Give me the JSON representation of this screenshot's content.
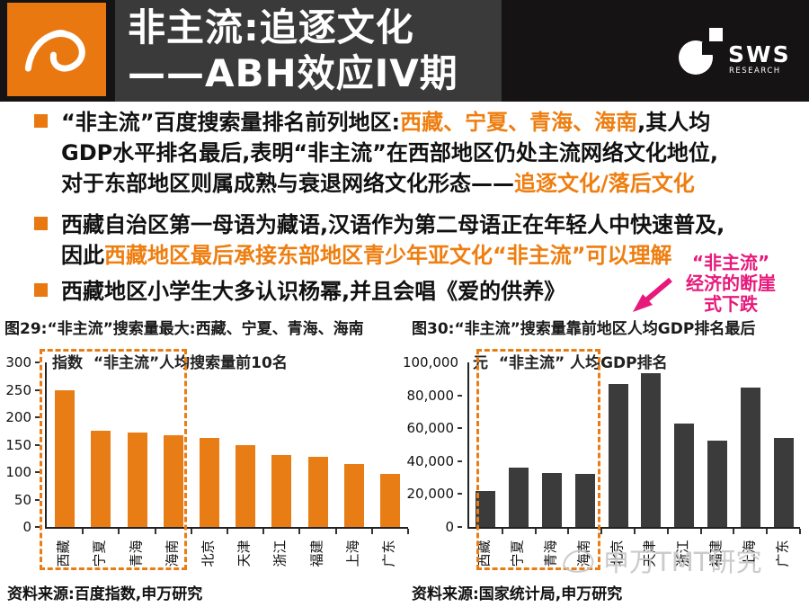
{
  "header": {
    "title_line1": "非主流:追逐文化",
    "title_line2": "——ABH效应IV期",
    "brand": "SWS",
    "brand_sub": "RESEARCH"
  },
  "colors": {
    "orange": "#E87D15",
    "orange_text": "#EE7E10",
    "pink": "#E7197B",
    "dark_bar": "#3B3B3B",
    "header_bg": "#151313",
    "title_block_bg": "#3B3A3A"
  },
  "bullets": [
    {
      "segments": [
        {
          "text": "“非主流”百度搜索量排名前列地区:",
          "color": "dark"
        },
        {
          "text": "西藏、宁夏、青海、海南",
          "color": "orange"
        },
        {
          "text": ",其人均\nGDP水平排名最后,表明“非主流”在西部地区仍处主流网络文化地位,\n对于东部地区则属成熟与衰退网络文化形态——",
          "color": "dark"
        },
        {
          "text": "追逐文化/落后文化",
          "color": "orange"
        }
      ]
    },
    {
      "segments": [
        {
          "text": "西藏自治区第一母语为藏语,汉语作为第二母语正在年轻人中快速普及,\n因此",
          "color": "dark"
        },
        {
          "text": "西藏地区最后承接东部地区青少年亚文化“非主流”可以理解",
          "color": "orange"
        }
      ]
    },
    {
      "segments": [
        {
          "text": "西藏地区小学生大多认识杨幂,并且会唱《爱的供养》",
          "color": "dark"
        }
      ]
    }
  ],
  "annotation": {
    "text": "“非主流”\n经济的断崖\n式下跌"
  },
  "figures": [
    {
      "caption": "图29:“非主流”搜索量最大:西藏、宁夏、青海、海南",
      "source": "资料来源:百度指数,申万研究"
    },
    {
      "caption": "图30:“非主流”搜索量靠前地区人均GDP排名最后",
      "source": "资料来源:国家统计局,申万研究"
    }
  ],
  "watermark": {
    "text": "申万TMT研究"
  },
  "chart_data": [
    {
      "type": "bar",
      "title": "“非主流”人均搜索量前10名",
      "ylabel": "指数",
      "categories": [
        "西藏",
        "宁夏",
        "青海",
        "海南",
        "北京",
        "天津",
        "浙江",
        "福建",
        "上海",
        "广东"
      ],
      "values": [
        250,
        175,
        172,
        167,
        162,
        150,
        131,
        128,
        115,
        96
      ],
      "ylim": [
        0,
        300
      ],
      "yticks": [
        "300",
        "250",
        "200",
        "150",
        "100",
        "50",
        "0"
      ],
      "bar_color": "#E87D15",
      "grid": false,
      "legend_position": "none",
      "highlight": {
        "categories": [
          "西藏",
          "宁夏",
          "青海",
          "海南"
        ],
        "style": "orange-dashed-box"
      }
    },
    {
      "type": "bar",
      "title": "“非主流” 人均GDP排名",
      "ylabel": "元",
      "categories": [
        "西藏",
        "宁夏",
        "青海",
        "海南",
        "北京",
        "天津",
        "浙江",
        "福建",
        "上海",
        "广东"
      ],
      "values": [
        22000,
        36000,
        33000,
        32000,
        87000,
        93500,
        63000,
        52500,
        84500,
        54000
      ],
      "ylim": [
        0,
        100000
      ],
      "yticks": [
        "100,000",
        "80,000",
        "60,000",
        "40,000",
        "20,000",
        "0"
      ],
      "bar_color": "#3B3B3B",
      "grid": false,
      "legend_position": "none",
      "highlight": {
        "categories": [
          "西藏",
          "宁夏",
          "青海",
          "海南"
        ],
        "style": "orange-dashed-box"
      }
    }
  ]
}
